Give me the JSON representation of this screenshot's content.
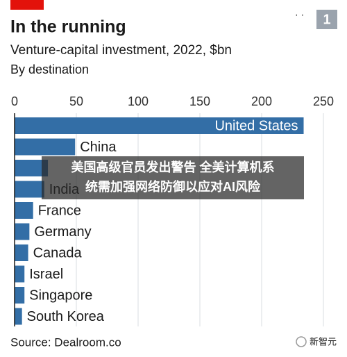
{
  "chart_data": {
    "type": "bar",
    "orientation": "horizontal",
    "title": "In the running",
    "subtitle": "Venture-capital investment, 2022, $bn",
    "note": "By destination",
    "source": "Source: Dealroom.co",
    "categories": [
      "United States",
      "China",
      null,
      "India",
      "France",
      "Germany",
      "Canada",
      "Israel",
      "Singapore",
      "South Korea"
    ],
    "values": [
      234,
      49,
      27,
      24,
      15,
      12,
      11,
      8,
      8,
      6
    ],
    "color": "#336ea6",
    "xlim": [
      0,
      250
    ],
    "xticks": [
      0,
      50,
      100,
      150,
      200,
      250
    ],
    "grid": true
  },
  "badge": "1",
  "overlay": [
    "美国高级官员发出警告 全美计算机系",
    "统需加强网络防御以应对AI风险"
  ],
  "watermark": "新智元"
}
